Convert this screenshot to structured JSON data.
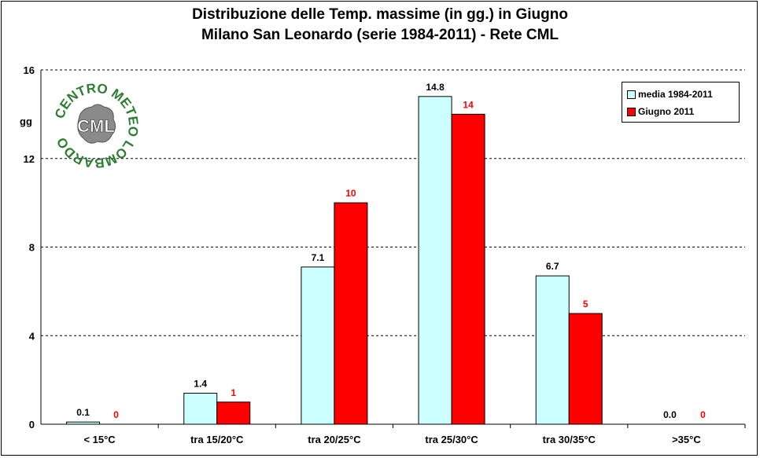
{
  "chart_data": {
    "type": "bar",
    "title": "Distribuzione  delle  Temp. massime  (in gg.)  in Giugno",
    "subtitle": "Milano  San Leonardo  (serie  1984-2011)  - Rete CML",
    "ylabel": "gg",
    "ylim": [
      0,
      16
    ],
    "yticks": [
      0,
      4,
      8,
      12,
      16
    ],
    "grid": true,
    "legend_position": "top-right",
    "categories": [
      "< 15°C",
      "tra 15/20°C",
      "tra 20/25°C",
      "tra 25/30°C",
      "tra 30/35°C",
      ">35°C"
    ],
    "series": [
      {
        "name": "media 1984-2011",
        "values": [
          0.1,
          1.4,
          7.1,
          14.8,
          6.7,
          0.0
        ],
        "labels": [
          "0.1",
          "1.4",
          "7.1",
          "14.8",
          "6.7",
          "0.0"
        ],
        "color": "#ccffff",
        "label_color": "#000000"
      },
      {
        "name": "Giugno 2011",
        "values": [
          0,
          1,
          10,
          14,
          5,
          0
        ],
        "labels": [
          "0",
          "1",
          "10",
          "14",
          "5",
          "0"
        ],
        "color": "#ff0000",
        "label_color": "#ff0000"
      }
    ]
  },
  "logo": {
    "ring_text": "CENTRO METEO LOMBARDO",
    "center_text": "CML"
  }
}
